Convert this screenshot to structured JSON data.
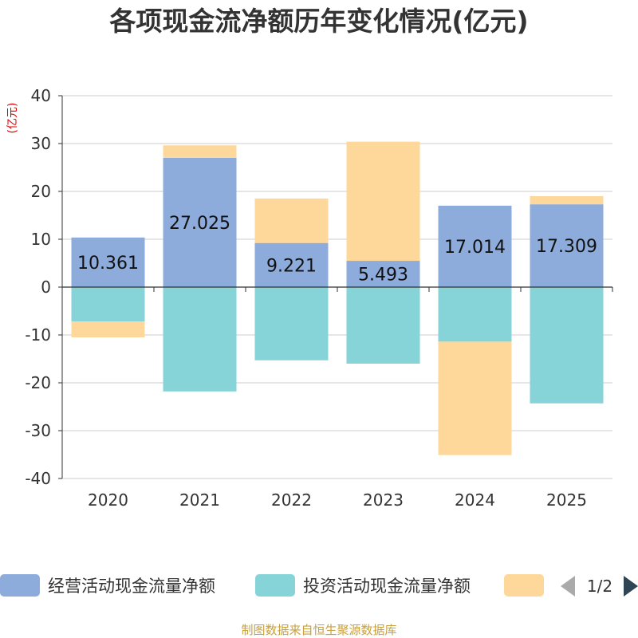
{
  "chart_data": {
    "type": "bar",
    "stacked": true,
    "title": "各项现金流净额历年变化情况(亿元)",
    "unit_label": "(亿元)",
    "categories": [
      "2020",
      "2021",
      "2022",
      "2023",
      "2024",
      "2025"
    ],
    "ylim": [
      -40,
      40
    ],
    "yticks": [
      40,
      30,
      20,
      10,
      0,
      -10,
      -20,
      -30,
      -40
    ],
    "grid": true,
    "series": [
      {
        "name": "经营活动现金流量净额",
        "color": "#8eacdb",
        "values": [
          10.361,
          27.025,
          9.221,
          5.493,
          17.014,
          17.309
        ],
        "labels": [
          "10.361",
          "27.025",
          "9.221",
          "5.493",
          "17.014",
          "17.309"
        ]
      },
      {
        "name": "投资活动现金流量净额",
        "color": "#86d4d8",
        "values": [
          -7.2,
          -21.8,
          -15.3,
          -16.0,
          -11.4,
          -24.3
        ]
      },
      {
        "name": "",
        "color": "#fed89a",
        "values": [
          -3.3,
          2.6,
          9.3,
          24.9,
          -23.7,
          1.7
        ]
      }
    ],
    "legend": {
      "position": "bottom",
      "page_indicator": "1/2"
    },
    "source": "制图数据来自恒生聚源数据库"
  }
}
